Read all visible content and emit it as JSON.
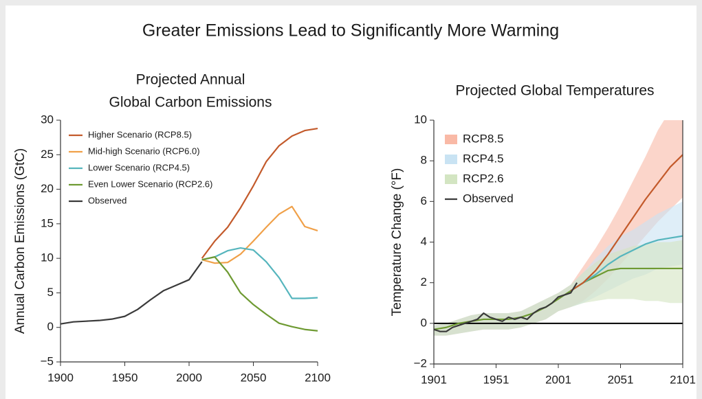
{
  "title": "Greater Emissions Lead to Significantly More Warming",
  "chart_data": [
    {
      "type": "line",
      "title": [
        "Projected Annual",
        "Global Carbon Emissions"
      ],
      "y_label": "Annual Carbon Emissions (GtC)",
      "xlim": [
        1900,
        2100
      ],
      "xticks": [
        1900,
        1950,
        2000,
        2050,
        2100
      ],
      "ylim": [
        -5,
        30
      ],
      "yticks": [
        {
          "value": -5,
          "label": "−5"
        },
        0,
        5,
        10,
        15,
        20,
        25,
        30
      ],
      "legend": "top-left",
      "series": [
        {
          "name": "Higher Scenario (RCP8.5)",
          "color": "#c35a2b",
          "x": [
            2010,
            2020,
            2030,
            2040,
            2050,
            2060,
            2070,
            2080,
            2090,
            2100
          ],
          "values": [
            10,
            12.5,
            14.5,
            17.3,
            20.5,
            24,
            26.3,
            27.7,
            28.5,
            28.8
          ]
        },
        {
          "name": "Mid-high Scenario (RCP6.0)",
          "color": "#f0a048",
          "x": [
            2010,
            2020,
            2030,
            2040,
            2050,
            2060,
            2070,
            2080,
            2090,
            2100
          ],
          "values": [
            9.8,
            9.3,
            9.4,
            10.6,
            12.5,
            14.5,
            16.4,
            17.5,
            14.6,
            14.0
          ]
        },
        {
          "name": "Lower Scenario (RCP4.5)",
          "color": "#55b5bd",
          "x": [
            2010,
            2020,
            2030,
            2040,
            2050,
            2060,
            2070,
            2080,
            2090,
            2100
          ],
          "values": [
            9.8,
            10.2,
            11.1,
            11.5,
            11.2,
            9.5,
            7.2,
            4.2,
            4.2,
            4.3
          ]
        },
        {
          "name": "Even Lower Scenario (RCP2.6)",
          "color": "#6e9a32",
          "x": [
            2010,
            2020,
            2030,
            2040,
            2050,
            2060,
            2070,
            2080,
            2090,
            2100
          ],
          "values": [
            9.8,
            10.2,
            8.0,
            5.0,
            3.3,
            1.9,
            0.6,
            0.1,
            -0.3,
            -0.5
          ]
        },
        {
          "name": "Observed",
          "color": "#3a3a3a",
          "x": [
            1900,
            1910,
            1920,
            1930,
            1940,
            1950,
            1960,
            1970,
            1980,
            1990,
            2000,
            2010
          ],
          "values": [
            0.5,
            0.8,
            0.9,
            1.0,
            1.2,
            1.6,
            2.6,
            4.0,
            5.3,
            6.1,
            6.9,
            9.5
          ]
        }
      ]
    },
    {
      "type": "band-line",
      "title": [
        "Projected Global Temperatures"
      ],
      "y_label": "Temperature Change (°F)",
      "xlim": [
        1901,
        2101
      ],
      "xticks": [
        1901,
        1951,
        2001,
        2051,
        2101
      ],
      "ylim": [
        -2,
        10
      ],
      "yticks": [
        {
          "value": -2,
          "label": "−2"
        },
        0,
        2,
        4,
        6,
        8,
        10
      ],
      "reference_line": 0,
      "legend": "top-left",
      "x": [
        1901,
        1911,
        1921,
        1931,
        1941,
        1951,
        1961,
        1971,
        1981,
        1991,
        2001,
        2011,
        2021,
        2031,
        2041,
        2051,
        2061,
        2071,
        2081,
        2091,
        2101
      ],
      "series": [
        {
          "name": "RCP8.5",
          "color": "#c35a2b",
          "band_color": "#f9b9a6",
          "values": [
            null,
            null,
            null,
            null,
            null,
            null,
            null,
            null,
            null,
            null,
            null,
            1.6,
            2.0,
            2.6,
            3.4,
            4.3,
            5.2,
            6.1,
            6.9,
            7.7,
            8.3
          ],
          "low": [
            -0.6,
            -0.6,
            -0.5,
            -0.4,
            -0.3,
            -0.3,
            -0.3,
            -0.2,
            0.0,
            0.2,
            0.6,
            0.8,
            1.1,
            1.6,
            2.2,
            2.9,
            3.6,
            4.3,
            5.0,
            5.6,
            6.2
          ],
          "high": [
            -0.1,
            0.0,
            0.2,
            0.4,
            0.5,
            0.5,
            0.5,
            0.6,
            0.9,
            1.2,
            1.5,
            1.9,
            2.8,
            3.7,
            4.7,
            5.8,
            7.0,
            8.2,
            9.5,
            10.5,
            11.5
          ]
        },
        {
          "name": "RCP4.5",
          "color": "#55b5bd",
          "band_color": "#c9e3f3",
          "values": [
            null,
            null,
            null,
            null,
            null,
            null,
            null,
            null,
            null,
            null,
            null,
            1.6,
            2.0,
            2.4,
            2.9,
            3.3,
            3.6,
            3.9,
            4.1,
            4.2,
            4.3
          ],
          "low": [
            -0.6,
            -0.6,
            -0.5,
            -0.4,
            -0.3,
            -0.3,
            -0.3,
            -0.2,
            0.0,
            0.2,
            0.6,
            0.8,
            1.0,
            1.3,
            1.6,
            1.9,
            2.2,
            2.4,
            2.7,
            2.8,
            2.9
          ],
          "high": [
            -0.1,
            0.0,
            0.2,
            0.4,
            0.5,
            0.5,
            0.5,
            0.6,
            0.9,
            1.2,
            1.5,
            1.9,
            2.5,
            3.2,
            3.8,
            4.3,
            4.6,
            5.0,
            5.4,
            5.7,
            6.0
          ]
        },
        {
          "name": "RCP2.6",
          "color": "#6e9a32",
          "band_color": "#d3e5c2",
          "values": [
            -0.3,
            -0.2,
            0.0,
            0.1,
            0.2,
            0.2,
            0.2,
            0.3,
            0.5,
            0.8,
            1.2,
            1.6,
            2.0,
            2.3,
            2.6,
            2.7,
            2.7,
            2.7,
            2.7,
            2.7,
            2.7
          ],
          "low": [
            -0.6,
            -0.6,
            -0.5,
            -0.4,
            -0.3,
            -0.3,
            -0.3,
            -0.2,
            0.0,
            0.2,
            0.6,
            0.8,
            1.0,
            1.1,
            1.2,
            1.2,
            1.2,
            1.1,
            1.1,
            1.0,
            1.0
          ],
          "high": [
            -0.1,
            0.0,
            0.2,
            0.4,
            0.5,
            0.5,
            0.5,
            0.6,
            0.9,
            1.2,
            1.5,
            1.9,
            2.5,
            3.0,
            3.4,
            3.6,
            3.8,
            3.9,
            4.0,
            4.0,
            4.1
          ]
        }
      ],
      "observed": {
        "name": "Observed",
        "color": "#3a3a3a",
        "x": [
          1901,
          1906,
          1911,
          1916,
          1921,
          1926,
          1931,
          1936,
          1941,
          1946,
          1951,
          1956,
          1961,
          1966,
          1971,
          1976,
          1981,
          1986,
          1991,
          1996,
          2001,
          2006,
          2011,
          2016
        ],
        "values": [
          -0.3,
          -0.4,
          -0.4,
          -0.2,
          -0.1,
          0.0,
          0.1,
          0.2,
          0.5,
          0.3,
          0.2,
          0.1,
          0.3,
          0.2,
          0.3,
          0.2,
          0.5,
          0.7,
          0.8,
          1.0,
          1.3,
          1.4,
          1.5,
          2.0
        ]
      }
    }
  ]
}
